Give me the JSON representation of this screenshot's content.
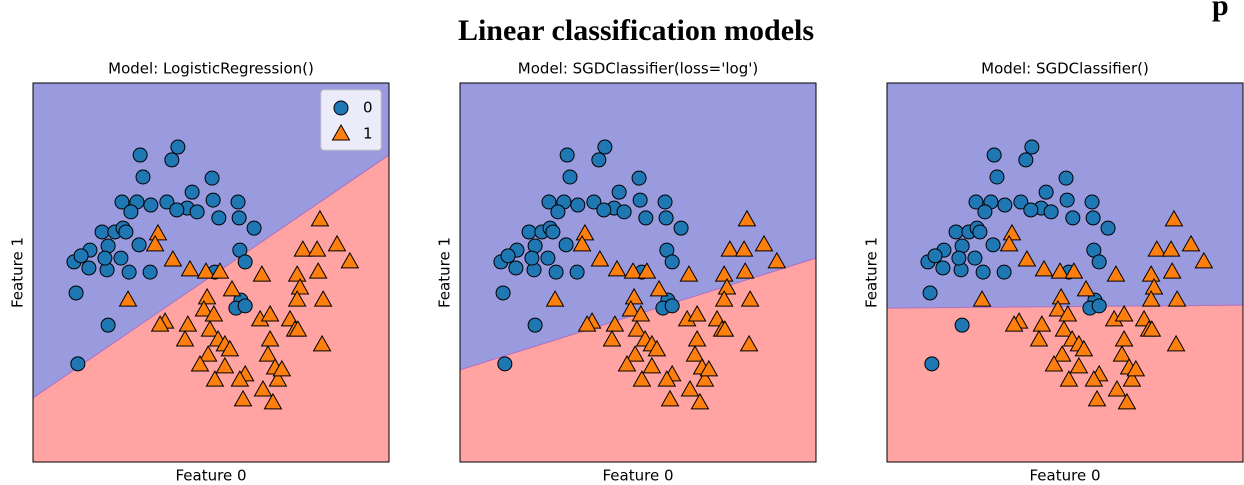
{
  "title": "Linear classification models",
  "corner_text": "p",
  "chart_data": [
    {
      "type": "scatter",
      "title": "Model: LogisticRegression()",
      "xlabel": "Feature 0",
      "ylabel": "Feature 1",
      "xlim": [
        0,
        100
      ],
      "ylim": [
        0,
        100
      ],
      "legend": "upper right",
      "region_colors": [
        "#9a9ade",
        "#ffa3a3"
      ],
      "boundary": {
        "x": [
          0,
          100
        ],
        "y": [
          16.9,
          81.0
        ]
      },
      "series": [
        {
          "name": "0",
          "color": "#1f77b4",
          "marker": "circle",
          "x": [
            30.1,
            40.7,
            39.0,
            30.9,
            50.3,
            25.0,
            29.2,
            33.1,
            37.6,
            43.3,
            44.7,
            46.1,
            50.6,
            52.2,
            57.6,
            27.5,
            40.4,
            57.9,
            62.1,
            19.4,
            23.0,
            25.3,
            16.0,
            21.1,
            26.1,
            24.7,
            29.8,
            11.5,
            15.7,
            20.8,
            27.0,
            32.9,
            13.5,
            20.2,
            58.1,
            59.6,
            51.1,
            58.4,
            57.0,
            59.6,
            12.1,
            21.1,
            12.6
          ],
          "values": [
            81.0,
            83.1,
            79.7,
            75.2,
            74.9,
            68.6,
            68.6,
            67.8,
            68.6,
            67.0,
            71.2,
            66.0,
            69.1,
            64.4,
            68.6,
            66.0,
            66.5,
            64.4,
            61.7,
            60.7,
            60.7,
            61.7,
            55.9,
            57.0,
            60.7,
            53.8,
            57.3,
            52.8,
            51.2,
            50.7,
            50.1,
            50.1,
            54.4,
            53.8,
            55.9,
            52.8,
            50.1,
            42.7,
            40.6,
            41.2,
            44.6,
            36.1,
            25.9
          ]
        },
        {
          "name": "1",
          "color": "#ff7f0e",
          "marker": "triangle",
          "x": [
            35.1,
            34.3,
            26.7,
            39.3,
            44.1,
            48.6,
            52.5,
            64.3,
            80.6,
            75.8,
            79.8,
            85.4,
            89.0,
            74.2,
            80.1,
            75.0,
            74.2,
            81.5,
            48.9,
            48.0,
            50.8,
            55.9,
            37.1,
            35.7,
            43.5,
            49.7,
            52.0,
            63.8,
            66.6,
            72.2,
            73.6,
            81.2,
            49.2,
            46.9,
            53.9,
            59.6,
            51.1,
            58.1,
            66.0,
            68.0,
            68.8,
            66.6,
            42.7,
            53.9,
            64.6,
            59.0,
            69.9,
            74.4,
            67.4,
            55.3
          ],
          "values": [
            60.2,
            57.3,
            42.7,
            53.3,
            50.7,
            50.1,
            50.1,
            49.3,
            63.9,
            55.9,
            55.9,
            57.3,
            52.8,
            49.3,
            50.1,
            45.9,
            42.7,
            42.7,
            43.3,
            40.1,
            38.8,
            45.4,
            36.9,
            36.1,
            36.1,
            34.8,
            32.2,
            37.5,
            38.8,
            37.5,
            34.8,
            30.9,
            28.2,
            25.6,
            25.1,
            23.0,
            21.6,
            21.6,
            28.2,
            24.8,
            21.6,
            32.2,
            32.2,
            30.9,
            19.0,
            16.4,
            24.3,
            34.8,
            15.6,
            29.6
          ]
        }
      ]
    },
    {
      "type": "scatter",
      "title": "Model: SGDClassifier(loss='log')",
      "xlabel": "Feature 0",
      "ylabel": "Feature 1",
      "xlim": [
        0,
        100
      ],
      "ylim": [
        0,
        100
      ],
      "region_colors": [
        "#9a9ade",
        "#ffa3a3"
      ],
      "boundary": {
        "x": [
          0,
          100
        ],
        "y": [
          24.3,
          53.8
        ]
      },
      "series": [
        {
          "name": "0",
          "color": "#1f77b4",
          "marker": "circle",
          "x": [
            30.1,
            40.7,
            39.0,
            30.9,
            50.3,
            25.0,
            29.2,
            33.1,
            37.6,
            43.3,
            44.7,
            46.1,
            50.6,
            52.2,
            57.6,
            27.5,
            40.4,
            57.9,
            62.1,
            19.4,
            23.0,
            25.3,
            16.0,
            21.1,
            26.1,
            24.7,
            29.8,
            11.5,
            15.7,
            20.8,
            27.0,
            32.9,
            13.5,
            20.2,
            58.1,
            59.6,
            51.1,
            58.4,
            57.0,
            59.6,
            12.1,
            21.1,
            12.6
          ],
          "values": [
            81.0,
            83.1,
            79.7,
            75.2,
            74.9,
            68.6,
            68.6,
            67.8,
            68.6,
            67.0,
            71.2,
            66.0,
            69.1,
            64.4,
            68.6,
            66.0,
            66.5,
            64.4,
            61.7,
            60.7,
            60.7,
            61.7,
            55.9,
            57.0,
            60.7,
            53.8,
            57.3,
            52.8,
            51.2,
            50.7,
            50.1,
            50.1,
            54.4,
            53.8,
            55.9,
            52.8,
            50.1,
            42.7,
            40.6,
            41.2,
            44.6,
            36.1,
            25.9
          ]
        },
        {
          "name": "1",
          "color": "#ff7f0e",
          "marker": "triangle",
          "x": [
            35.1,
            34.3,
            26.7,
            39.3,
            44.1,
            48.6,
            52.5,
            64.3,
            80.6,
            75.8,
            79.8,
            85.4,
            89.0,
            74.2,
            80.1,
            75.0,
            74.2,
            81.5,
            48.9,
            48.0,
            50.8,
            55.9,
            37.1,
            35.7,
            43.5,
            49.7,
            52.0,
            63.8,
            66.6,
            72.2,
            73.6,
            81.2,
            49.2,
            46.9,
            53.9,
            59.6,
            51.1,
            58.1,
            66.0,
            68.0,
            68.8,
            66.6,
            42.7,
            53.9,
            64.6,
            59.0,
            69.9,
            74.4,
            67.4,
            55.3
          ],
          "values": [
            60.2,
            57.3,
            42.7,
            53.3,
            50.7,
            50.1,
            50.1,
            49.3,
            63.9,
            55.9,
            55.9,
            57.3,
            52.8,
            49.3,
            50.1,
            45.9,
            42.7,
            42.7,
            43.3,
            40.1,
            38.8,
            45.4,
            36.9,
            36.1,
            36.1,
            34.8,
            32.2,
            37.5,
            38.8,
            37.5,
            34.8,
            30.9,
            28.2,
            25.6,
            25.1,
            23.0,
            21.6,
            21.6,
            28.2,
            24.8,
            21.6,
            32.2,
            32.2,
            30.9,
            19.0,
            16.4,
            24.3,
            34.8,
            15.6,
            29.6
          ]
        }
      ]
    },
    {
      "type": "scatter",
      "title": "Model: SGDClassifier()",
      "xlabel": "Feature 0",
      "ylabel": "Feature 1",
      "xlim": [
        0,
        100
      ],
      "ylim": [
        0,
        100
      ],
      "region_colors": [
        "#9a9ade",
        "#ffa3a3"
      ],
      "boundary": {
        "x": [
          0,
          100
        ],
        "y": [
          40.6,
          41.4
        ]
      },
      "series": [
        {
          "name": "0",
          "color": "#1f77b4",
          "marker": "circle",
          "x": [
            30.1,
            40.7,
            39.0,
            30.9,
            50.3,
            25.0,
            29.2,
            33.1,
            37.6,
            43.3,
            44.7,
            46.1,
            50.6,
            52.2,
            57.6,
            27.5,
            40.4,
            57.9,
            62.1,
            19.4,
            23.0,
            25.3,
            16.0,
            21.1,
            26.1,
            24.7,
            29.8,
            11.5,
            15.7,
            20.8,
            27.0,
            32.9,
            13.5,
            20.2,
            58.1,
            59.6,
            51.1,
            58.4,
            57.0,
            59.6,
            12.1,
            21.1,
            12.6
          ],
          "values": [
            81.0,
            83.1,
            79.7,
            75.2,
            74.9,
            68.6,
            68.6,
            67.8,
            68.6,
            67.0,
            71.2,
            66.0,
            69.1,
            64.4,
            68.6,
            66.0,
            66.5,
            64.4,
            61.7,
            60.7,
            60.7,
            61.7,
            55.9,
            57.0,
            60.7,
            53.8,
            57.3,
            52.8,
            51.2,
            50.7,
            50.1,
            50.1,
            54.4,
            53.8,
            55.9,
            52.8,
            50.1,
            42.7,
            40.6,
            41.2,
            44.6,
            36.1,
            25.9
          ]
        },
        {
          "name": "1",
          "color": "#ff7f0e",
          "marker": "triangle",
          "x": [
            35.1,
            34.3,
            26.7,
            39.3,
            44.1,
            48.6,
            52.5,
            64.3,
            80.6,
            75.8,
            79.8,
            85.4,
            89.0,
            74.2,
            80.1,
            75.0,
            74.2,
            81.5,
            48.9,
            48.0,
            50.8,
            55.9,
            37.1,
            35.7,
            43.5,
            49.7,
            52.0,
            63.8,
            66.6,
            72.2,
            73.6,
            81.2,
            49.2,
            46.9,
            53.9,
            59.6,
            51.1,
            58.1,
            66.0,
            68.0,
            68.8,
            66.6,
            42.7,
            53.9,
            64.6,
            59.0,
            69.9,
            74.4,
            67.4,
            55.3
          ],
          "values": [
            60.2,
            57.3,
            42.7,
            53.3,
            50.7,
            50.1,
            50.1,
            49.3,
            63.9,
            55.9,
            55.9,
            57.3,
            52.8,
            49.3,
            50.1,
            45.9,
            42.7,
            42.7,
            43.3,
            40.1,
            38.8,
            45.4,
            36.9,
            36.1,
            36.1,
            34.8,
            32.2,
            37.5,
            38.8,
            37.5,
            34.8,
            30.9,
            28.2,
            25.6,
            25.1,
            23.0,
            21.6,
            21.6,
            28.2,
            24.8,
            21.6,
            32.2,
            32.2,
            30.9,
            19.0,
            16.4,
            24.3,
            34.8,
            15.6,
            29.6
          ]
        }
      ]
    }
  ]
}
